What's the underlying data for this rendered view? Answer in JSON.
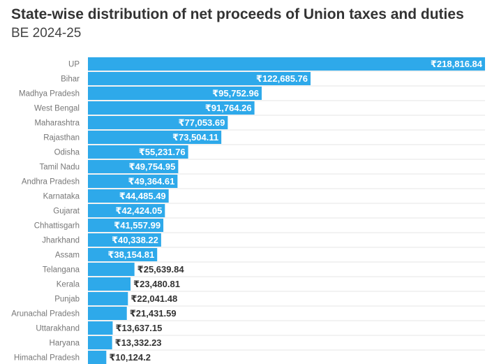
{
  "chart_data": {
    "type": "bar",
    "orientation": "horizontal",
    "title": "State-wise distribution of net proceeds of Union taxes and duties",
    "subtitle": "BE 2024-25",
    "xlabel": "",
    "ylabel": "",
    "value_prefix": "₹",
    "xlim": [
      0,
      218816.84
    ],
    "grid": true,
    "categories": [
      "UP",
      "Bihar",
      "Madhya Pradesh",
      "West Bengal",
      "Maharashtra",
      "Rajasthan",
      "Odisha",
      "Tamil Nadu",
      "Andhra Pradesh",
      "Karnataka",
      "Gujarat",
      "Chhattisgarh",
      "Jharkhand",
      "Assam",
      "Telangana",
      "Kerala",
      "Punjab",
      "Arunachal Pradesh",
      "Uttarakhand",
      "Haryana",
      "Himachal Pradesh"
    ],
    "values": [
      218816.84,
      122685.76,
      95752.96,
      91764.26,
      77053.69,
      73504.11,
      55231.76,
      49754.95,
      49364.61,
      44485.49,
      42424.05,
      41557.99,
      40338.22,
      38154.81,
      25639.84,
      23480.81,
      22041.48,
      21431.59,
      13637.15,
      13332.23,
      10124.2
    ],
    "value_labels": [
      "₹218,816.84",
      "₹122,685.76",
      "₹95,752.96",
      "₹91,764.26",
      "₹77,053.69",
      "₹73,504.11",
      "₹55,231.76",
      "₹49,754.95",
      "₹49,364.61",
      "₹44,485.49",
      "₹42,424.05",
      "₹41,557.99",
      "₹40,338.22",
      "₹38,154.81",
      "₹25,639.84",
      "₹23,480.81",
      "₹22,041.48",
      "₹21,431.59",
      "₹13,637.15",
      "₹13,332.23",
      "₹10,124.2"
    ],
    "colors": {
      "bar": "#2ea9ea",
      "label_inside": "#ffffff",
      "label_outside": "#333333",
      "grid": "#e6e6e6"
    }
  }
}
